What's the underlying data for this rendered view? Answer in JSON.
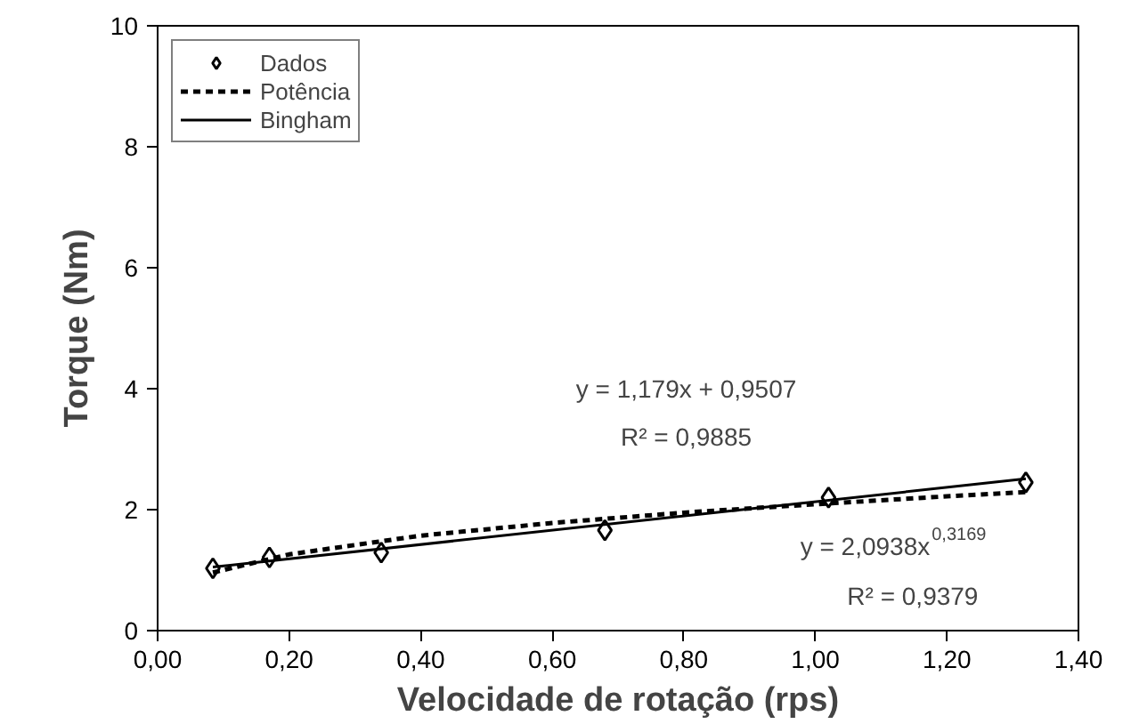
{
  "chart_data": {
    "type": "scatter",
    "xlabel": "Velocidade de rotação (rps)",
    "ylabel": "Torque (Nm)",
    "xlim": [
      0,
      1.4
    ],
    "ylim": [
      0,
      10
    ],
    "xticks": [
      {
        "value": 0,
        "label": "0,00"
      },
      {
        "value": 0.2,
        "label": "0,20"
      },
      {
        "value": 0.4,
        "label": "0,40"
      },
      {
        "value": 0.6,
        "label": "0,60"
      },
      {
        "value": 0.8,
        "label": "0,80"
      },
      {
        "value": 1.0,
        "label": "1,00"
      },
      {
        "value": 1.2,
        "label": "1,20"
      },
      {
        "value": 1.4,
        "label": "1,40"
      }
    ],
    "yticks": [
      0,
      2,
      4,
      6,
      8,
      10
    ],
    "legend": "top left",
    "grid": false,
    "series": [
      {
        "name": "Dados",
        "marker": "diamond",
        "color": "#000000",
        "x": [
          0.084,
          0.17,
          0.34,
          0.68,
          1.02,
          1.32
        ],
        "values": [
          1.03,
          1.21,
          1.29,
          1.66,
          2.2,
          2.45
        ]
      },
      {
        "name": "Potência",
        "type": "line",
        "line_style": "dotted",
        "color": "#000000",
        "x": [
          0.084,
          0.2,
          0.4,
          0.6,
          0.8,
          1.0,
          1.2,
          1.32
        ],
        "values": [
          0.96,
          1.26,
          1.57,
          1.78,
          1.95,
          2.09,
          2.22,
          2.29
        ]
      },
      {
        "name": "Bingham",
        "type": "line",
        "line_style": "solid",
        "color": "#000000",
        "x": [
          0.084,
          1.32
        ],
        "values": [
          1.05,
          2.51
        ]
      }
    ],
    "annotations": [
      "y = 1,179x + 0,9507",
      "R² = 0,9885",
      "y = 2,0938x$^{0,3169}$",
      "R² = 0,9379"
    ]
  }
}
